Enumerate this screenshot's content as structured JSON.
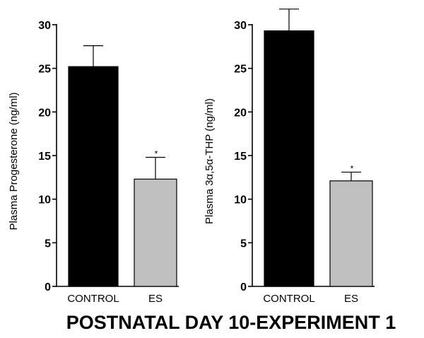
{
  "figure_title": "POSTNATAL DAY 10-EXPERIMENT 1",
  "chart_data": [
    {
      "type": "bar",
      "categories": [
        "CONTROL",
        "ES"
      ],
      "values": [
        25.2,
        12.3
      ],
      "errors": [
        2.4,
        2.5
      ],
      "colors": [
        "#000000",
        "#c0c0c0"
      ],
      "significance": [
        "",
        "*"
      ],
      "ylabel": "Plasma Progesterone (ng/ml)",
      "ylim": [
        0,
        30
      ],
      "yticks": [
        0,
        5,
        10,
        15,
        20,
        25,
        30
      ],
      "grid": false
    },
    {
      "type": "bar",
      "categories": [
        "CONTROL",
        "ES"
      ],
      "values": [
        29.3,
        12.1
      ],
      "errors": [
        2.5,
        1.0
      ],
      "colors": [
        "#000000",
        "#c0c0c0"
      ],
      "significance": [
        "",
        "*"
      ],
      "ylabel": "Plasma 3α,5α-THP (ng/ml)",
      "ylim": [
        0,
        30
      ],
      "yticks": [
        0,
        5,
        10,
        15,
        20,
        25,
        30
      ],
      "grid": false
    }
  ]
}
